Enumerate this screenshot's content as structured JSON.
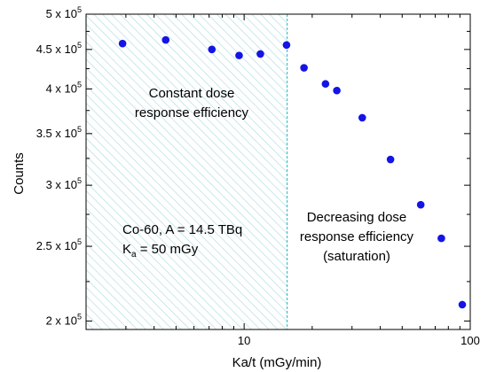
{
  "chart_data": {
    "type": "scatter",
    "xlabel": "Ka/t (mGy/min)",
    "ylabel": "Counts",
    "xscale": "log",
    "yscale": "log",
    "xlim": [
      2,
      100
    ],
    "ylim": [
      195000,
      500000
    ],
    "x_ticks": [
      {
        "value": 10,
        "label": "10"
      },
      {
        "value": 100,
        "label": "100"
      }
    ],
    "y_ticks": [
      {
        "value": 200000,
        "mant": "2 x 10",
        "exp": "5"
      },
      {
        "value": 250000,
        "mant": "2.5 x 10",
        "exp": "5"
      },
      {
        "value": 300000,
        "mant": "3 x 10",
        "exp": "5"
      },
      {
        "value": 350000,
        "mant": "3.5 x 10",
        "exp": "5"
      },
      {
        "value": 400000,
        "mant": "4 x 10",
        "exp": "5"
      },
      {
        "value": 450000,
        "mant": "4.5 x 10",
        "exp": "5"
      },
      {
        "value": 500000,
        "mant": "5 x 10",
        "exp": "5"
      }
    ],
    "point_color": "#1414e6",
    "points": [
      {
        "x": 2.9,
        "y": 458000
      },
      {
        "x": 4.5,
        "y": 463000
      },
      {
        "x": 7.2,
        "y": 450000
      },
      {
        "x": 9.5,
        "y": 442000
      },
      {
        "x": 11.8,
        "y": 444000
      },
      {
        "x": 15.4,
        "y": 456000
      },
      {
        "x": 18.4,
        "y": 426000
      },
      {
        "x": 22.9,
        "y": 406000
      },
      {
        "x": 25.7,
        "y": 398000
      },
      {
        "x": 33.3,
        "y": 367000
      },
      {
        "x": 44.4,
        "y": 324000
      },
      {
        "x": 60.4,
        "y": 283000
      },
      {
        "x": 74.5,
        "y": 256000
      },
      {
        "x": 92.2,
        "y": 210000
      }
    ],
    "region": {
      "x_start": 2,
      "x_end": 15.5,
      "hatch_color": "#a9d9df",
      "line_color": "#21b8c7"
    },
    "annotations": {
      "region_left": [
        "Constant dose",
        "response efficiency"
      ],
      "region_right": [
        "Decreasing dose",
        "response efficiency",
        "(saturation)"
      ],
      "source_line1": "Co-60, A = 14.5 TBq",
      "source_k": "K",
      "source_k_sub": "a",
      "source_k_rest": " = 50 mGy"
    }
  }
}
